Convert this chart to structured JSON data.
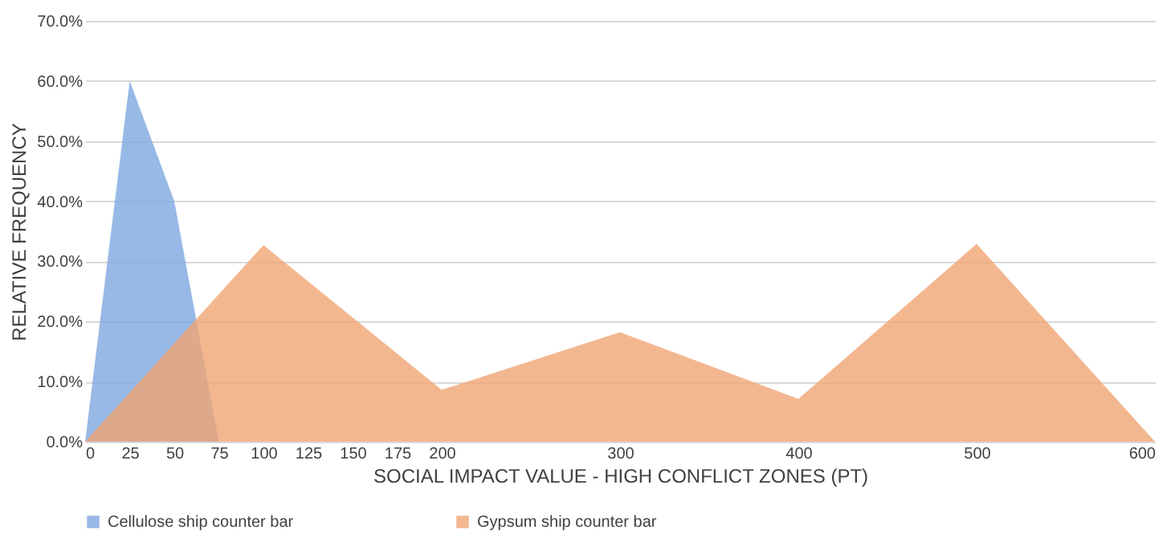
{
  "chart_data": {
    "type": "area",
    "xlabel": "SOCIAL IMPACT VALUE - HIGH CONFLICT ZONES (PT)",
    "ylabel": "RELATIVE FREQUENCY",
    "series": [
      {
        "name": "Cellulose ship counter bar",
        "color": "#7ea7e0",
        "x": [
          0,
          25,
          50,
          75
        ],
        "values": [
          0,
          60,
          40,
          0
        ]
      },
      {
        "name": "Gypsum ship counter bar",
        "color": "#f0a574",
        "x": [
          0,
          100,
          200,
          300,
          400,
          500,
          600
        ],
        "values": [
          0,
          32.7,
          8.6,
          18.2,
          7.1,
          32.9,
          0
        ]
      }
    ],
    "xlim": [
      0,
      600
    ],
    "xticks": [
      0,
      25,
      50,
      75,
      100,
      125,
      150,
      175,
      200,
      300,
      400,
      500,
      600
    ],
    "ylim": [
      0,
      70
    ],
    "yticks": [
      {
        "value": 0,
        "label": "0.0%"
      },
      {
        "value": 10,
        "label": "10.0%"
      },
      {
        "value": 20,
        "label": "20.0%"
      },
      {
        "value": 30,
        "label": "30.0%"
      },
      {
        "value": 40,
        "label": "40.0%"
      },
      {
        "value": 50,
        "label": "50.0%"
      },
      {
        "value": 60,
        "label": "60.0%"
      },
      {
        "value": 70,
        "label": "70.0%"
      }
    ],
    "grid": "y",
    "legend": "bottom"
  }
}
